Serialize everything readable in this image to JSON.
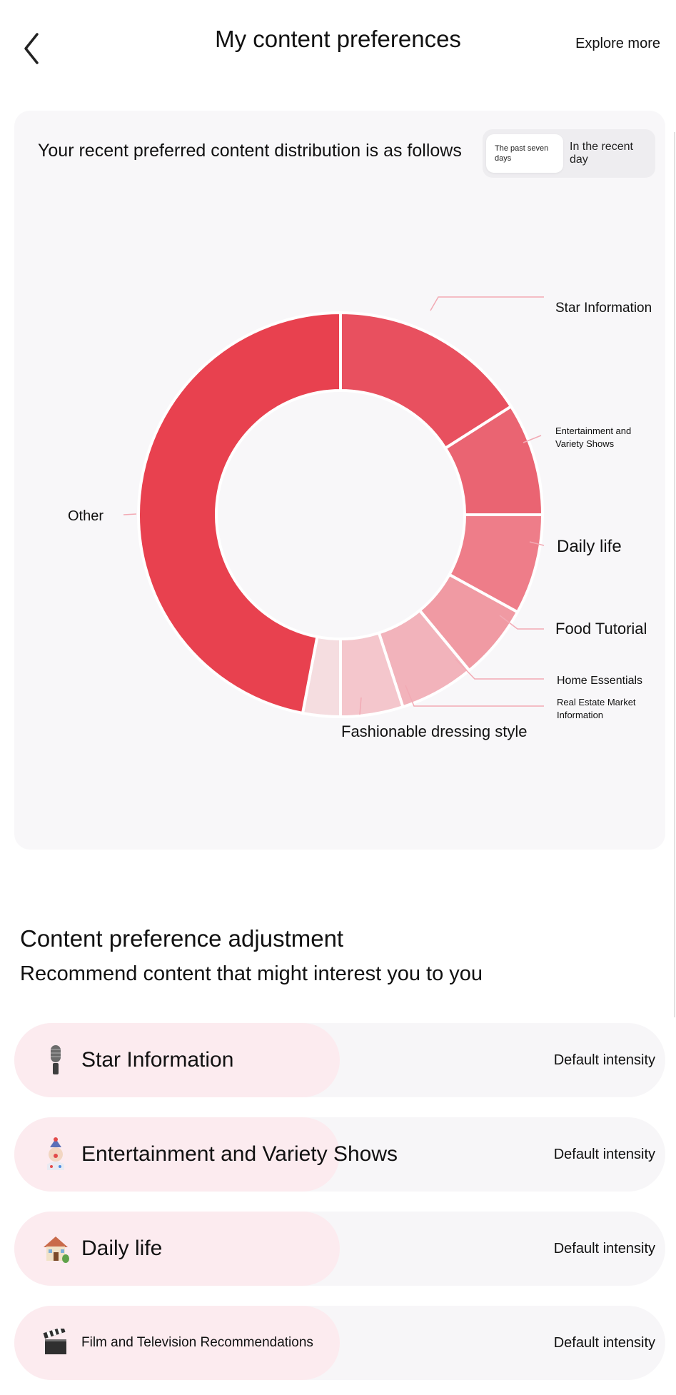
{
  "header": {
    "title": "My content preferences",
    "explore_label": "Explore more"
  },
  "distribution": {
    "title": "Your recent preferred content distribution is as follows",
    "toggle": {
      "active": "The past seven days",
      "inactive": "In the recent day"
    }
  },
  "chart_data": {
    "type": "pie",
    "categories": [
      "Star Information",
      "Entertainment and Variety Shows",
      "Daily life",
      "Food Tutorial",
      "Home Essentials",
      "Real Estate Market Information",
      "Fashionable dressing style",
      "Other"
    ],
    "values": [
      16,
      9,
      8,
      6,
      6,
      5,
      3,
      47
    ],
    "colors": [
      "#e8505f",
      "#ea6472",
      "#ee7d89",
      "#f09aa3",
      "#f2b3bb",
      "#f4c6cc",
      "#f5dde0",
      "#e8414f"
    ]
  },
  "adjustment": {
    "title": "Content preference adjustment",
    "subtitle": "Recommend content that might interest you to you",
    "items": [
      {
        "label": "Star Information",
        "intensity": "Default intensity",
        "icon": "microphone-icon",
        "level": 0.5
      },
      {
        "label": "Entertainment and Variety Shows",
        "intensity": "Default intensity",
        "icon": "clown-icon",
        "level": 0.5
      },
      {
        "label": "Daily life",
        "intensity": "Default intensity",
        "icon": "house-icon",
        "level": 0.5
      },
      {
        "label": "Film and Television Recommendations",
        "intensity": "Default intensity",
        "icon": "clapperboard-icon",
        "level": 0.5
      }
    ]
  }
}
